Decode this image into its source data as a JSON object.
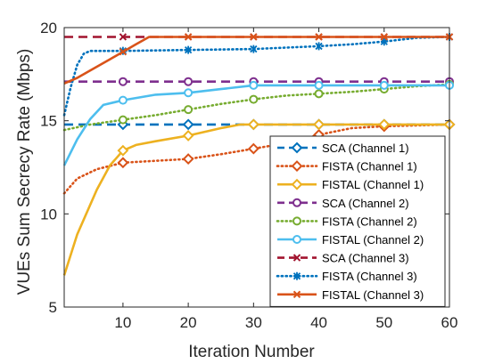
{
  "chart_data": {
    "type": "line",
    "title": "",
    "xlabel": "Iteration Number",
    "ylabel": "VUEs Sum Secrecy Rate (Mbps)",
    "xlim": [
      1,
      60
    ],
    "ylim": [
      5,
      20
    ],
    "xticks": [
      10,
      20,
      30,
      40,
      50,
      60
    ],
    "yticks": [
      5,
      10,
      15,
      20
    ],
    "grid": false,
    "legend_position": "bottom-right",
    "series": [
      {
        "name": "SCA (Channel 1)",
        "color": "#0072BD",
        "dash": "long-dash",
        "marker": "diamond",
        "x": [
          1,
          10,
          20,
          30,
          40,
          50,
          60
        ],
        "y": [
          14.8,
          14.8,
          14.8,
          14.8,
          14.8,
          14.8,
          14.8
        ]
      },
      {
        "name": "FISTA (Channel 1)",
        "color": "#D95319",
        "dash": "dotted",
        "marker": "diamond",
        "x": [
          1,
          3,
          6,
          10,
          15,
          20,
          25,
          30,
          35,
          40,
          45,
          50,
          55,
          60
        ],
        "y": [
          11.1,
          11.9,
          12.4,
          12.75,
          12.85,
          12.95,
          13.2,
          13.5,
          13.8,
          14.25,
          14.6,
          14.7,
          14.75,
          14.8
        ]
      },
      {
        "name": "FISTAL (Channel 1)",
        "color": "#EDB120",
        "dash": "solid",
        "marker": "diamond",
        "x": [
          1,
          3,
          6,
          8,
          10,
          12,
          15,
          20,
          25,
          28,
          30,
          40,
          50,
          60
        ],
        "y": [
          6.7,
          8.9,
          11.3,
          12.6,
          13.4,
          13.7,
          13.9,
          14.2,
          14.6,
          14.8,
          14.8,
          14.8,
          14.8,
          14.8
        ]
      },
      {
        "name": "SCA (Channel 2)",
        "color": "#7E2F8E",
        "dash": "long-dash",
        "marker": "circle",
        "x": [
          1,
          10,
          20,
          30,
          40,
          50,
          60
        ],
        "y": [
          17.1,
          17.1,
          17.1,
          17.1,
          17.1,
          17.1,
          17.1
        ]
      },
      {
        "name": "FISTA (Channel 2)",
        "color": "#77AC30",
        "dash": "dotted",
        "marker": "circle",
        "x": [
          1,
          5,
          10,
          15,
          20,
          25,
          30,
          35,
          40,
          45,
          50,
          55,
          60
        ],
        "y": [
          14.5,
          14.8,
          15.05,
          15.3,
          15.6,
          15.9,
          16.15,
          16.35,
          16.45,
          16.55,
          16.7,
          16.85,
          16.95
        ]
      },
      {
        "name": "FISTAL (Channel 2)",
        "color": "#4DBEEE",
        "dash": "solid",
        "marker": "circle",
        "x": [
          1,
          3,
          5,
          7,
          10,
          15,
          20,
          25,
          30,
          40,
          50,
          60
        ],
        "y": [
          12.6,
          14.0,
          15.1,
          15.85,
          16.1,
          16.4,
          16.5,
          16.7,
          16.9,
          16.9,
          16.9,
          16.9
        ]
      },
      {
        "name": "SCA (Channel 3)",
        "color": "#A2142F",
        "dash": "long-dash",
        "marker": "x",
        "x": [
          1,
          10,
          20,
          30,
          40,
          50,
          60
        ],
        "y": [
          19.5,
          19.5,
          19.5,
          19.5,
          19.5,
          19.5,
          19.5
        ]
      },
      {
        "name": "FISTA (Channel 3)",
        "color": "#0072BD",
        "dash": "dotted",
        "marker": "asterisk",
        "x": [
          1,
          2,
          3,
          4,
          5,
          10,
          20,
          30,
          40,
          45,
          50,
          55,
          60
        ],
        "y": [
          15.3,
          16.8,
          18.0,
          18.6,
          18.75,
          18.75,
          18.8,
          18.85,
          19.0,
          19.1,
          19.25,
          19.45,
          19.5
        ]
      },
      {
        "name": "FISTAL (Channel 3)",
        "color": "#D95319",
        "dash": "solid",
        "marker": "x",
        "x": [
          1,
          3,
          5,
          8,
          10,
          12,
          14,
          20,
          30,
          40,
          50,
          60
        ],
        "y": [
          17.0,
          17.3,
          17.7,
          18.3,
          18.7,
          19.1,
          19.5,
          19.5,
          19.5,
          19.5,
          19.5,
          19.5
        ]
      }
    ]
  }
}
